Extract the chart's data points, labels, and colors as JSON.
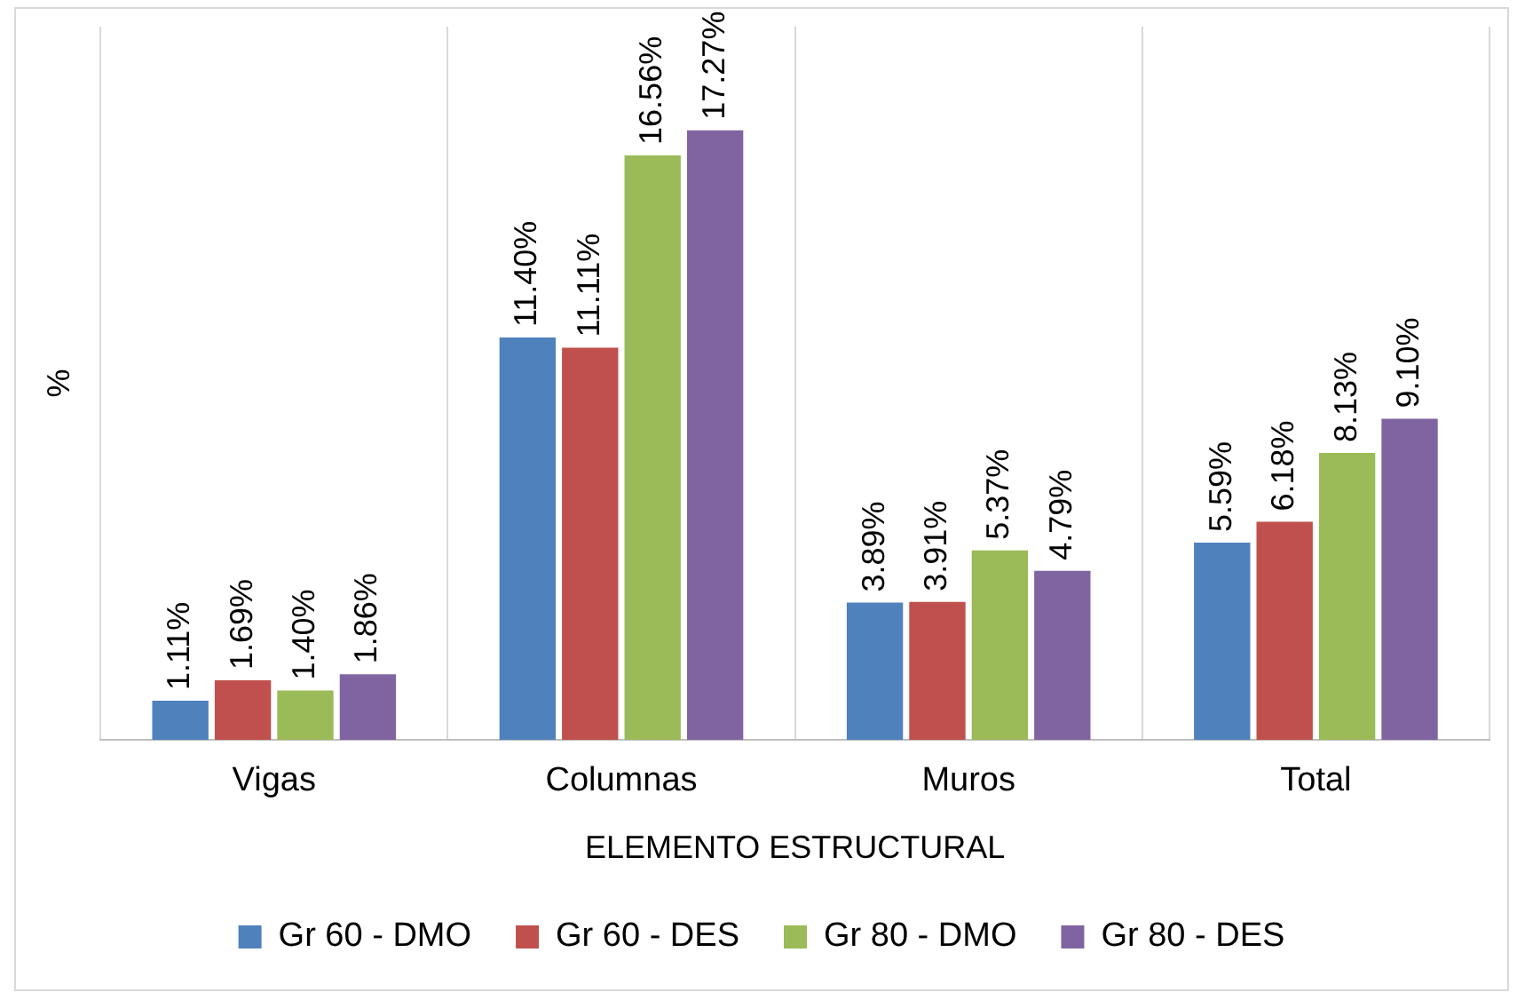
{
  "chart_data": {
    "type": "bar",
    "xlabel": "ELEMENTO ESTRUCTURAL",
    "ylabel": "%",
    "categories": [
      "Vigas",
      "Columnas",
      "Muros",
      "Total"
    ],
    "series": [
      {
        "name": "Gr 60 - DMO",
        "color": "#4f81bd",
        "values": [
          1.11,
          11.4,
          3.89,
          5.59
        ],
        "value_labels": [
          "1.11%",
          "11.40%",
          "3.89%",
          "5.59%"
        ]
      },
      {
        "name": "Gr 60 - DES",
        "color": "#c0504d",
        "values": [
          1.69,
          11.11,
          3.91,
          6.18
        ],
        "value_labels": [
          "1.69%",
          "11.11%",
          "3.91%",
          "6.18%"
        ]
      },
      {
        "name": "Gr 80 - DMO",
        "color": "#9bbb59",
        "values": [
          1.4,
          16.56,
          5.37,
          8.13
        ],
        "value_labels": [
          "1.40%",
          "16.56%",
          "5.37%",
          "8.13%"
        ]
      },
      {
        "name": "Gr 80 - DES",
        "color": "#8064a2",
        "values": [
          1.86,
          17.27,
          4.79,
          9.1
        ],
        "value_labels": [
          "1.86%",
          "17.27%",
          "4.79%",
          "9.10%"
        ]
      }
    ],
    "grid": "x",
    "legend": "bottom",
    "tick_labels": "x"
  }
}
